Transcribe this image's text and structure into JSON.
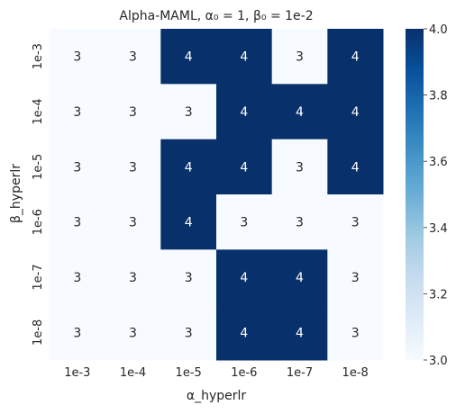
{
  "chart_data": {
    "type": "heatmap",
    "title": "Alpha-MAML, α₀ = 1, β₀ = 1e-2",
    "xlabel": "α_hyperlr",
    "ylabel": "β_hyperlr",
    "x_categories": [
      "1e-3",
      "1e-4",
      "1e-5",
      "1e-6",
      "1e-7",
      "1e-8"
    ],
    "y_categories": [
      "1e-3",
      "1e-4",
      "1e-5",
      "1e-6",
      "1e-7",
      "1e-8"
    ],
    "values": [
      [
        3,
        3,
        4,
        4,
        3,
        4
      ],
      [
        3,
        3,
        3,
        4,
        4,
        4
      ],
      [
        3,
        3,
        4,
        4,
        3,
        4
      ],
      [
        3,
        3,
        4,
        3,
        3,
        3
      ],
      [
        3,
        3,
        3,
        4,
        4,
        3
      ],
      [
        3,
        3,
        3,
        4,
        4,
        3
      ]
    ],
    "value_range": [
      3.0,
      4.0
    ],
    "colormap": "Blues",
    "colors": {
      "low": "#f7fbff",
      "high": "#08306b"
    },
    "annotations": true,
    "colorbar": {
      "ticks": [
        "3.0",
        "3.2",
        "3.4",
        "3.6",
        "3.8",
        "4.0"
      ]
    },
    "grid": false,
    "legend": "none"
  }
}
